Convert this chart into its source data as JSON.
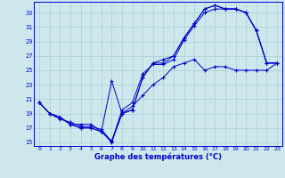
{
  "xlabel": "Graphe des températures (°C)",
  "background_color": "#cce8ec",
  "grid_color": "#aaccd4",
  "line_color": "#0000cc",
  "xlim": [
    -0.5,
    23.5
  ],
  "ylim": [
    14.5,
    34.5
  ],
  "yticks": [
    15,
    17,
    19,
    21,
    23,
    25,
    27,
    29,
    31,
    33
  ],
  "xticks": [
    0,
    1,
    2,
    3,
    4,
    5,
    6,
    7,
    8,
    9,
    10,
    11,
    12,
    13,
    14,
    15,
    16,
    17,
    18,
    19,
    20,
    21,
    22,
    23
  ],
  "line1_x": [
    0,
    1,
    2,
    3,
    4,
    5,
    6,
    7,
    8,
    9,
    10,
    11,
    12,
    13,
    14,
    15,
    16,
    17,
    18,
    19,
    20,
    21,
    22,
    23
  ],
  "line1_y": [
    20.5,
    19.0,
    18.2,
    17.8,
    17.2,
    17.2,
    16.8,
    15.1,
    19.5,
    20.5,
    24.5,
    25.8,
    25.8,
    26.5,
    29.2,
    31.2,
    33.0,
    33.5,
    33.5,
    33.5,
    33.0,
    30.5,
    26.0,
    26.0
  ],
  "line2_x": [
    0,
    1,
    2,
    3,
    4,
    5,
    6,
    7,
    8,
    9,
    10,
    11,
    12,
    13,
    14,
    15,
    16,
    17,
    18,
    19,
    20,
    21,
    22,
    23
  ],
  "line2_y": [
    20.5,
    19.0,
    18.5,
    17.5,
    17.0,
    17.0,
    16.5,
    15.2,
    19.0,
    19.5,
    24.0,
    26.0,
    26.0,
    27.0,
    29.5,
    31.5,
    33.5,
    34.0,
    33.5,
    33.5,
    33.0,
    30.5,
    26.0,
    26.0
  ],
  "line3_x": [
    0,
    1,
    2,
    3,
    4,
    5,
    6,
    7,
    8,
    9,
    10,
    11,
    12,
    13,
    14,
    15,
    16,
    17,
    18,
    19,
    20,
    21,
    22,
    23
  ],
  "line3_y": [
    20.5,
    19.0,
    18.5,
    17.5,
    17.0,
    17.0,
    16.5,
    23.5,
    19.0,
    19.5,
    24.0,
    26.0,
    26.5,
    27.0,
    29.5,
    31.5,
    33.5,
    34.0,
    33.5,
    33.5,
    33.0,
    30.5,
    26.0,
    26.0
  ],
  "line4_x": [
    0,
    1,
    2,
    3,
    4,
    5,
    6,
    7,
    8,
    9,
    10,
    11,
    12,
    13,
    14,
    15,
    16,
    17,
    18,
    19,
    20,
    21,
    22,
    23
  ],
  "line4_y": [
    20.5,
    19.0,
    18.5,
    17.5,
    17.5,
    17.5,
    16.5,
    15.0,
    19.0,
    20.0,
    21.5,
    23.0,
    24.0,
    25.5,
    26.0,
    26.5,
    25.0,
    25.5,
    25.5,
    25.0,
    25.0,
    25.0,
    25.0,
    26.0
  ]
}
